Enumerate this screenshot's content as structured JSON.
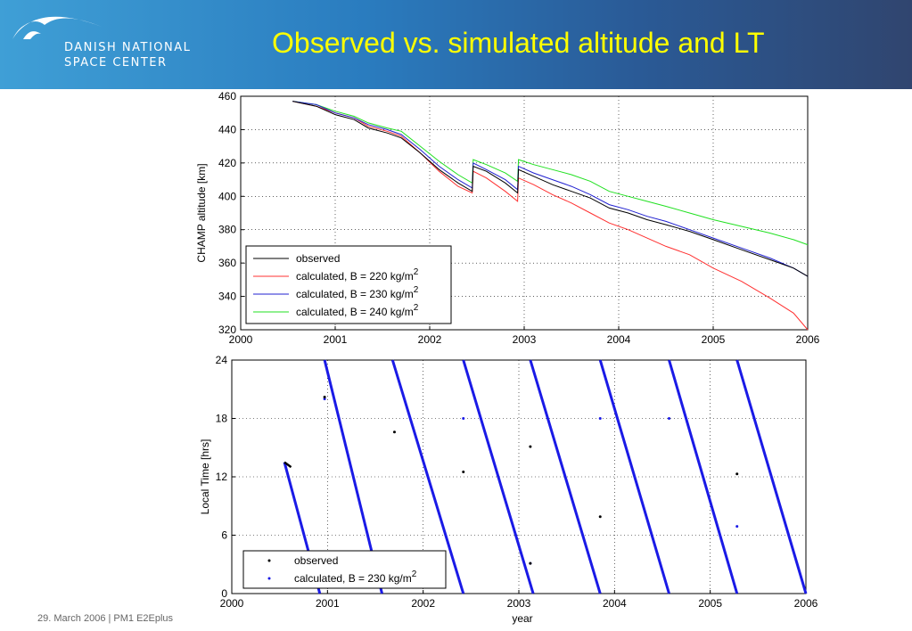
{
  "header": {
    "org_line1": "DANISH NATIONAL",
    "org_line2": "SPACE CENTER",
    "title": "Observed vs. simulated altitude and LT"
  },
  "footer": {
    "text": "29. March 2006 | PM1 E2Eplus"
  },
  "colors": {
    "header_start": "#3f9fd6",
    "header_end": "#30456f",
    "title": "#ffff00",
    "observed": "#000000",
    "b220": "#ff3030",
    "b230": "#2020d0",
    "b240": "#20e020"
  },
  "chart_data": [
    {
      "type": "line",
      "ylabel": "CHAMP altitude [km]",
      "xlim": [
        2000,
        2006
      ],
      "ylim": [
        320,
        460
      ],
      "xticks": [
        2000,
        2001,
        2002,
        2003,
        2004,
        2005,
        2006
      ],
      "yticks": [
        320,
        340,
        360,
        380,
        400,
        420,
        440,
        460
      ],
      "grid": true,
      "legend_position": "bottom-left",
      "series": [
        {
          "name": "observed",
          "color": "#000000",
          "x": [
            2000.55,
            2000.8,
            2001.0,
            2001.2,
            2001.35,
            2001.55,
            2001.7,
            2001.9,
            2002.1,
            2002.3,
            2002.45,
            2002.46,
            2002.6,
            2002.8,
            2002.93,
            2002.94,
            2003.1,
            2003.3,
            2003.5,
            2003.7,
            2003.9,
            2004.1,
            2004.3,
            2004.5,
            2004.75,
            2005.0,
            2005.3,
            2005.6,
            2005.85,
            2006.0
          ],
          "y": [
            457,
            454,
            449,
            446,
            441,
            438,
            435,
            426,
            416,
            408,
            403,
            418,
            415,
            408,
            402,
            416,
            412,
            407,
            403,
            399,
            393,
            390,
            386,
            383,
            379,
            374,
            368,
            362,
            357,
            352
          ]
        },
        {
          "name": "calculated, B = 220 kg/m",
          "sup": "2",
          "color": "#ff3030",
          "x": [
            2000.55,
            2000.8,
            2001.0,
            2001.2,
            2001.35,
            2001.55,
            2001.7,
            2001.9,
            2002.1,
            2002.3,
            2002.45,
            2002.46,
            2002.6,
            2002.8,
            2002.93,
            2002.94,
            2003.1,
            2003.3,
            2003.5,
            2003.7,
            2003.9,
            2004.1,
            2004.3,
            2004.5,
            2004.75,
            2005.0,
            2005.3,
            2005.6,
            2005.85,
            2006.0
          ],
          "y": [
            457,
            454,
            450,
            447,
            442,
            439,
            436,
            426,
            415,
            406,
            402,
            415,
            411,
            403,
            397,
            411,
            407,
            401,
            396,
            390,
            384,
            380,
            375,
            370,
            365,
            357,
            349,
            339,
            330,
            320
          ]
        },
        {
          "name": "calculated, B = 230 kg/m",
          "sup": "2",
          "color": "#2020d0",
          "x": [
            2000.55,
            2000.8,
            2001.0,
            2001.2,
            2001.35,
            2001.55,
            2001.7,
            2001.9,
            2002.1,
            2002.3,
            2002.45,
            2002.46,
            2002.6,
            2002.8,
            2002.93,
            2002.94,
            2003.1,
            2003.3,
            2003.5,
            2003.7,
            2003.9,
            2004.1,
            2004.3,
            2004.5,
            2004.75,
            2005.0,
            2005.3,
            2005.6,
            2005.85,
            2006.0
          ],
          "y": [
            457,
            455,
            450,
            447,
            443,
            440,
            437,
            428,
            418,
            410,
            405,
            420,
            416,
            410,
            404,
            418,
            414,
            410,
            406,
            401,
            395,
            392,
            388,
            385,
            380,
            375,
            369,
            363,
            357,
            352
          ]
        },
        {
          "name": "calculated, B = 240 kg/m",
          "sup": "2",
          "color": "#20e020",
          "x": [
            2000.55,
            2000.8,
            2001.0,
            2001.2,
            2001.35,
            2001.55,
            2001.7,
            2001.9,
            2002.1,
            2002.3,
            2002.45,
            2002.46,
            2002.6,
            2002.8,
            2002.93,
            2002.94,
            2003.1,
            2003.3,
            2003.5,
            2003.7,
            2003.9,
            2004.1,
            2004.3,
            2004.5,
            2004.75,
            2005.0,
            2005.3,
            2005.6,
            2005.85,
            2006.0
          ],
          "y": [
            457,
            455,
            451,
            448,
            444,
            441,
            439,
            430,
            421,
            413,
            408,
            422,
            419,
            414,
            409,
            422,
            419,
            416,
            413,
            409,
            403,
            400,
            397,
            394,
            390,
            386,
            382,
            378,
            374,
            371
          ]
        }
      ]
    },
    {
      "type": "scatter",
      "xlabel": "year",
      "ylabel": "Local Time [hrs]",
      "xlim": [
        2000,
        2006
      ],
      "ylim": [
        0,
        24
      ],
      "xticks": [
        2000,
        2001,
        2002,
        2003,
        2004,
        2005,
        2006
      ],
      "yticks": [
        0,
        6,
        12,
        18,
        24
      ],
      "grid": true,
      "legend_position": "bottom-left",
      "series": [
        {
          "name": "observed",
          "color": "#000000",
          "segments": [
            [
              [
                2000.55,
                13.5
              ],
              [
                2000.62,
                13.0
              ]
            ]
          ],
          "points": [
            [
              2000.97,
              20.2
            ],
            [
              2001.7,
              16.6
            ],
            [
              2002.42,
              12.5
            ],
            [
              2003.12,
              15.1
            ],
            [
              2003.85,
              7.9
            ],
            [
              2003.12,
              3.1
            ],
            [
              2005.28,
              12.3
            ]
          ]
        },
        {
          "name": "calculated, B = 230 kg/m",
          "sup": "2",
          "color": "#1a1ae6",
          "segments": [
            [
              [
                2000.55,
                13.5
              ],
              [
                2000.92,
                0
              ]
            ],
            [
              [
                2000.97,
                24
              ],
              [
                2001.57,
                0
              ]
            ],
            [
              [
                2001.68,
                24
              ],
              [
                2002.42,
                0
              ]
            ],
            [
              [
                2002.42,
                24
              ],
              [
                2003.15,
                0
              ]
            ],
            [
              [
                2003.12,
                24
              ],
              [
                2003.85,
                0
              ]
            ],
            [
              [
                2003.85,
                24
              ],
              [
                2004.57,
                0
              ]
            ],
            [
              [
                2004.57,
                24
              ],
              [
                2005.28,
                0
              ]
            ],
            [
              [
                2005.28,
                24
              ],
              [
                2006.0,
                0
              ]
            ]
          ],
          "points": [
            [
              2000.97,
              20.0
            ],
            [
              2002.42,
              18.0
            ],
            [
              2003.85,
              18.0
            ],
            [
              2004.57,
              18.0
            ],
            [
              2005.28,
              6.9
            ],
            [
              2003.12,
              3.1
            ]
          ]
        }
      ]
    }
  ]
}
